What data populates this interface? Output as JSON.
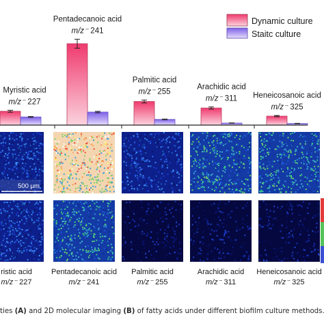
{
  "legend": {
    "dynamic": "Dynamic culture",
    "static": "Staitc culture",
    "dynamic_color": "#f0708f",
    "static_color": "#b49cf2"
  },
  "scale_bar": "500 μm",
  "caption": {
    "prefix": "ties ",
    "a": "(A)",
    "middle": " and 2D molecular imaging ",
    "b": "(B)",
    "suffix": " of fatty acids under different biofilm culture methods."
  },
  "chart_data": {
    "type": "bar",
    "categories": [
      "Myristic acid",
      "Pentadecanoic acid",
      "Palmitic acid",
      "Arachidic acid",
      "Heneicosanoic acid"
    ],
    "mz": [
      "227",
      "241",
      "255",
      "311",
      "325"
    ],
    "mz_prefix": "m/z⁻",
    "bottom_labels": [
      "ristic acid",
      "Pentadecanoic acid",
      "Palmitic acid",
      "Arachidic acid",
      "Heneicosanoic acid"
    ],
    "series": [
      {
        "name": "Dynamic culture",
        "values": [
          17,
          100,
          29,
          21,
          11
        ],
        "errors": [
          1.2,
          5.5,
          1.8,
          1.4,
          0.8
        ]
      },
      {
        "name": "Staitc culture",
        "values": [
          10,
          16,
          7,
          2.5,
          2
        ],
        "errors": [
          0.5,
          0.9,
          0.4,
          0.2,
          0.2
        ]
      }
    ],
    "ylim": [
      0,
      110
    ],
    "image_palettes": {
      "dynamic": [
        "deep-blue",
        "white-yellow-red",
        "deep-blue",
        "blue-green",
        "blue-green"
      ],
      "static": [
        "deep-blue",
        "blue-green",
        "dark-navy",
        "dark-navy",
        "dark-navy"
      ]
    }
  }
}
